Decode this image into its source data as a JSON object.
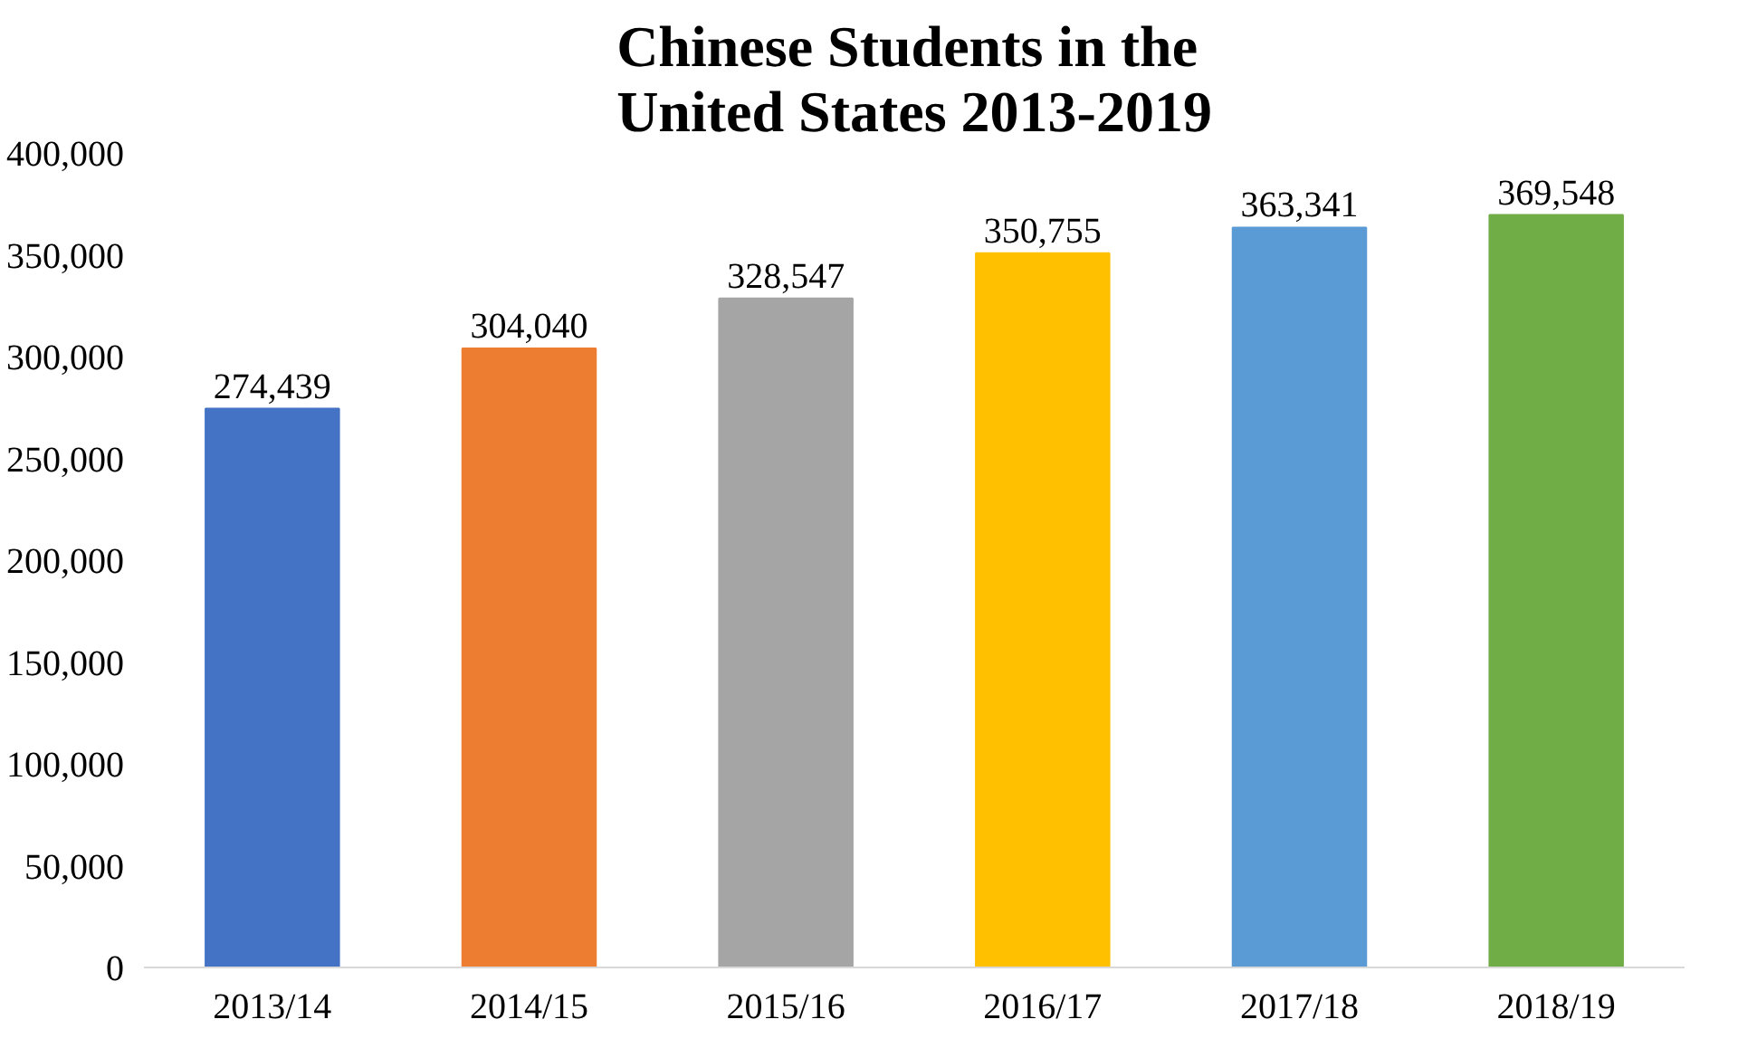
{
  "chart_data": {
    "type": "bar",
    "title": "Chinese Students in the\nUnited States 2013-2019",
    "categories": [
      "2013/14",
      "2014/15",
      "2015/16",
      "2016/17",
      "2017/18",
      "2018/19"
    ],
    "values": [
      274439,
      304040,
      328547,
      350755,
      363341,
      369548
    ],
    "colors": [
      "#4472c4",
      "#ed7d31",
      "#a5a5a5",
      "#ffc000",
      "#5b9bd5",
      "#70ad47"
    ],
    "ylim": [
      0,
      400000
    ],
    "yticks": [
      {
        "value": 0,
        "label": "0"
      },
      {
        "value": 50000,
        "label": "50,000"
      },
      {
        "value": 100000,
        "label": "100,000"
      },
      {
        "value": 150000,
        "label": "150,000"
      },
      {
        "value": 200000,
        "label": "200,000"
      },
      {
        "value": 250000,
        "label": "250,000"
      },
      {
        "value": 300000,
        "label": "300,000"
      },
      {
        "value": 350000,
        "label": "350,000"
      },
      {
        "value": 400000,
        "label": "400,000"
      }
    ],
    "grid": false,
    "value_labels": [
      "274,439",
      "304,040",
      "328,547",
      "350,755",
      "363,341",
      "369,548"
    ]
  }
}
